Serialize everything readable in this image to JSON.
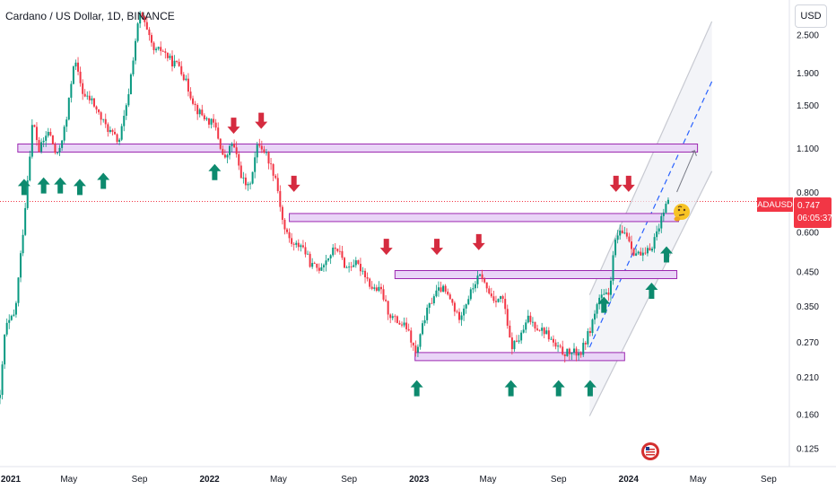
{
  "header": {
    "title": "Cardano / US Dollar, 1D, BINANCE",
    "currency": "USD"
  },
  "price_tag": {
    "symbol": "ADAUSD",
    "price": "0.747",
    "countdown": "06:05:37"
  },
  "colors": {
    "up": "#089981",
    "down": "#f23645",
    "arrow_up": "#0d8a6e",
    "arrow_down": "#d52b3f",
    "zone_fill": "#e9d5f7",
    "zone_border": "#9c27b0",
    "channel": "#c7c9d1",
    "projection": "#2962ff"
  },
  "chart_data": {
    "type": "candlestick",
    "symbol": "ADAUSD",
    "timeframe": "1D",
    "y_scale": "log",
    "grid": false,
    "x_ticks": [
      "2021",
      "May",
      "Sep",
      "2022",
      "May",
      "Sep",
      "2023",
      "May",
      "Sep",
      "2024",
      "May",
      "Sep"
    ],
    "y_ticks": [
      "2.500",
      "1.900",
      "1.500",
      "1.100",
      "0.800",
      "0.600",
      "0.450",
      "0.350",
      "0.270",
      "0.210",
      "0.160",
      "0.125"
    ],
    "x_range": [
      "2021-01-01",
      "2024-10-07"
    ],
    "y_range": [
      0.111,
      3.11
    ],
    "last_price": 0.747,
    "price_path": [
      [
        "2021-01-01",
        0.18
      ],
      [
        "2021-01-10",
        0.3
      ],
      [
        "2021-01-27",
        0.33
      ],
      [
        "2021-02-10",
        0.6
      ],
      [
        "2021-02-27",
        1.35
      ],
      [
        "2021-03-10",
        1.08
      ],
      [
        "2021-03-27",
        1.25
      ],
      [
        "2021-04-10",
        1.02
      ],
      [
        "2021-04-27",
        1.35
      ],
      [
        "2021-05-10",
        2.1
      ],
      [
        "2021-05-27",
        1.6
      ],
      [
        "2021-06-10",
        1.55
      ],
      [
        "2021-06-27",
        1.35
      ],
      [
        "2021-07-10",
        1.25
      ],
      [
        "2021-07-27",
        1.15
      ],
      [
        "2021-08-10",
        1.5
      ],
      [
        "2021-08-27",
        2.55
      ],
      [
        "2021-09-03",
        2.95
      ],
      [
        "2021-09-17",
        2.45
      ],
      [
        "2021-09-27",
        2.2
      ],
      [
        "2021-10-10",
        2.25
      ],
      [
        "2021-10-27",
        2.05
      ],
      [
        "2021-11-10",
        2.0
      ],
      [
        "2021-11-27",
        1.65
      ],
      [
        "2021-12-10",
        1.45
      ],
      [
        "2021-12-27",
        1.35
      ],
      [
        "2022-01-10",
        1.3
      ],
      [
        "2022-01-27",
        1.0
      ],
      [
        "2022-02-10",
        1.15
      ],
      [
        "2022-02-27",
        0.88
      ],
      [
        "2022-03-10",
        0.82
      ],
      [
        "2022-03-27",
        1.15
      ],
      [
        "2022-04-10",
        1.05
      ],
      [
        "2022-04-27",
        0.88
      ],
      [
        "2022-05-10",
        0.62
      ],
      [
        "2022-05-27",
        0.54
      ],
      [
        "2022-06-10",
        0.55
      ],
      [
        "2022-06-27",
        0.47
      ],
      [
        "2022-07-10",
        0.46
      ],
      [
        "2022-07-27",
        0.5
      ],
      [
        "2022-08-10",
        0.54
      ],
      [
        "2022-08-27",
        0.46
      ],
      [
        "2022-09-10",
        0.48
      ],
      [
        "2022-09-27",
        0.45
      ],
      [
        "2022-10-10",
        0.4
      ],
      [
        "2022-10-27",
        0.39
      ],
      [
        "2022-11-10",
        0.33
      ],
      [
        "2022-11-27",
        0.31
      ],
      [
        "2022-12-10",
        0.3
      ],
      [
        "2022-12-27",
        0.245
      ],
      [
        "2023-01-10",
        0.32
      ],
      [
        "2023-01-27",
        0.38
      ],
      [
        "2023-02-10",
        0.4
      ],
      [
        "2023-02-27",
        0.36
      ],
      [
        "2023-03-10",
        0.32
      ],
      [
        "2023-03-27",
        0.37
      ],
      [
        "2023-04-10",
        0.42
      ],
      [
        "2023-04-20",
        0.44
      ],
      [
        "2023-04-27",
        0.4
      ],
      [
        "2023-05-10",
        0.37
      ],
      [
        "2023-05-27",
        0.37
      ],
      [
        "2023-06-10",
        0.26
      ],
      [
        "2023-06-27",
        0.28
      ],
      [
        "2023-07-10",
        0.32
      ],
      [
        "2023-07-27",
        0.3
      ],
      [
        "2023-08-10",
        0.29
      ],
      [
        "2023-08-27",
        0.26
      ],
      [
        "2023-09-10",
        0.25
      ],
      [
        "2023-09-27",
        0.25
      ],
      [
        "2023-10-10",
        0.25
      ],
      [
        "2023-10-27",
        0.3
      ],
      [
        "2023-11-10",
        0.37
      ],
      [
        "2023-11-27",
        0.38
      ],
      [
        "2023-12-10",
        0.58
      ],
      [
        "2023-12-27",
        0.6
      ],
      [
        "2024-01-10",
        0.52
      ],
      [
        "2024-01-27",
        0.5
      ],
      [
        "2024-02-10",
        0.54
      ],
      [
        "2024-02-27",
        0.66
      ],
      [
        "2024-03-05",
        0.75
      ],
      [
        "2024-03-10",
        0.747
      ]
    ],
    "annotations": {
      "zones": [
        {
          "price": 1.1,
          "from": "2021-02-01",
          "to": "2024-04-30"
        },
        {
          "price": 0.665,
          "from": "2022-05-20",
          "to": "2024-03-28"
        },
        {
          "price": 0.44,
          "from": "2022-11-20",
          "to": "2024-03-25"
        },
        {
          "price": 0.243,
          "from": "2022-12-25",
          "to": "2023-12-25"
        }
      ],
      "up_arrows": [
        {
          "date": "2021-02-12",
          "price": 0.88
        },
        {
          "date": "2021-03-18",
          "price": 0.89
        },
        {
          "date": "2021-04-16",
          "price": 0.89
        },
        {
          "date": "2021-05-20",
          "price": 0.88
        },
        {
          "date": "2021-06-30",
          "price": 0.92
        },
        {
          "date": "2022-01-10",
          "price": 0.98
        },
        {
          "date": "2022-12-28",
          "price": 0.205
        },
        {
          "date": "2023-06-10",
          "price": 0.205
        },
        {
          "date": "2023-09-01",
          "price": 0.205
        },
        {
          "date": "2023-10-26",
          "price": 0.205
        },
        {
          "date": "2023-11-19",
          "price": 0.375
        },
        {
          "date": "2024-02-10",
          "price": 0.415
        },
        {
          "date": "2024-03-07",
          "price": 0.54
        }
      ],
      "down_arrows": [
        {
          "date": "2022-02-12",
          "price": 1.37
        },
        {
          "date": "2022-04-01",
          "price": 1.42
        },
        {
          "date": "2022-05-28",
          "price": 0.9
        },
        {
          "date": "2022-11-05",
          "price": 0.57
        },
        {
          "date": "2023-02-01",
          "price": 0.57
        },
        {
          "date": "2023-04-15",
          "price": 0.59
        },
        {
          "date": "2023-12-10",
          "price": 0.9
        },
        {
          "date": "2024-01-01",
          "price": 0.9
        }
      ],
      "channel": {
        "lower": [
          [
            "2023-10-25",
            0.158
          ],
          [
            "2024-05-25",
            0.93
          ]
        ],
        "upper": [
          [
            "2023-10-25",
            0.38
          ],
          [
            "2024-05-25",
            2.75
          ]
        ],
        "projection": [
          [
            "2023-10-25",
            0.26
          ],
          [
            "2024-05-25",
            1.78
          ]
        ]
      },
      "target_arrow": {
        "from": [
          "2024-03-25",
          0.8
        ],
        "to": [
          "2024-04-25",
          1.08
        ]
      }
    }
  }
}
